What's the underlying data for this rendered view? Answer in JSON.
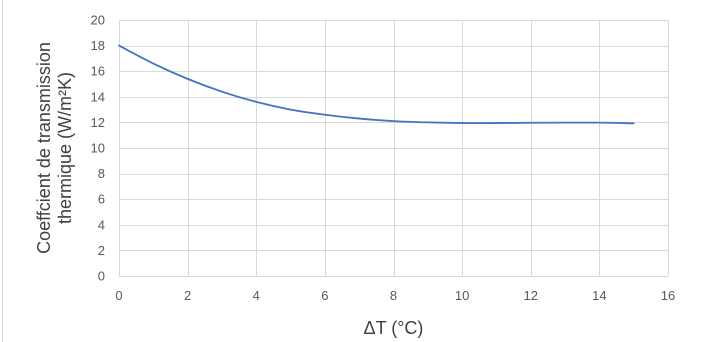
{
  "chart_data": {
    "type": "line",
    "title": "",
    "xlabel": "ΔT (°C)",
    "ylabel_lines": [
      "Coeffcient de transmission",
      "thermique (W/m²K)"
    ],
    "xlim": [
      0,
      16
    ],
    "ylim": [
      0,
      20
    ],
    "x_ticks": [
      0,
      2,
      4,
      6,
      8,
      10,
      12,
      14,
      16
    ],
    "y_ticks": [
      0,
      2,
      4,
      6,
      8,
      10,
      12,
      14,
      16,
      18,
      20
    ],
    "grid": true,
    "legend": "none",
    "series": [
      {
        "color": "#4472C4",
        "x": [
          0,
          1,
          2,
          3,
          4,
          5,
          6,
          7,
          8,
          9,
          10,
          11,
          12,
          13,
          14,
          15
        ],
        "y": [
          18.0,
          16.6,
          15.4,
          14.4,
          13.6,
          13.0,
          12.6,
          12.3,
          12.1,
          12.0,
          11.95,
          11.95,
          11.97,
          11.98,
          11.98,
          11.93
        ]
      }
    ]
  }
}
